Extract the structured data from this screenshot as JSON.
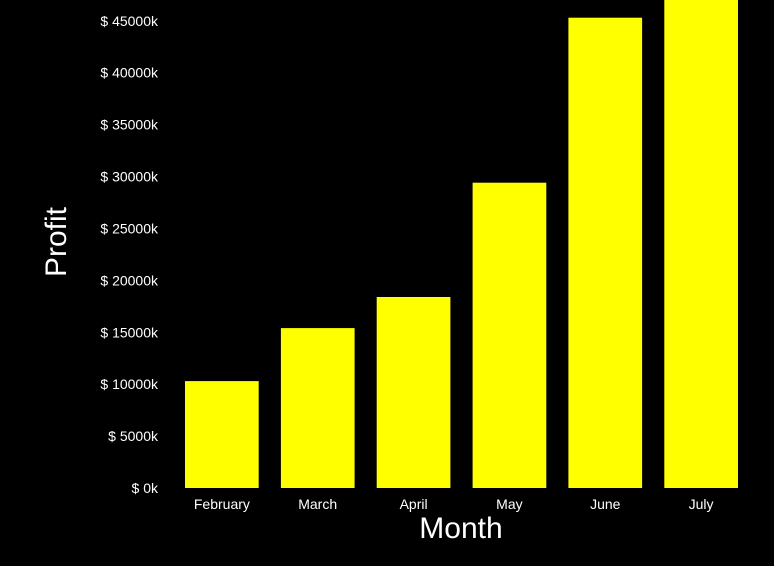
{
  "chart_data": {
    "type": "bar",
    "categories": [
      "February",
      "March",
      "April",
      "May",
      "June",
      "July"
    ],
    "values": [
      10300,
      15400,
      18400,
      29400,
      45300,
      47000
    ],
    "xlabel": "Month",
    "ylabel": "Profit",
    "ylim": [
      0,
      47000
    ],
    "yticks": [
      0,
      5000,
      10000,
      15000,
      20000,
      25000,
      30000,
      35000,
      40000,
      45000
    ],
    "ytick_labels": [
      "$ 0k",
      "$ 5000k",
      "$ 10000k",
      "$ 15000k",
      "$ 20000k",
      "$ 25000k",
      "$ 30000k",
      "$ 35000k",
      "$ 40000k",
      "$ 45000k"
    ],
    "grid": false,
    "legend": "none",
    "colors": {
      "bar": "#ffff00",
      "background": "#000000",
      "text": "#ffffff"
    }
  }
}
